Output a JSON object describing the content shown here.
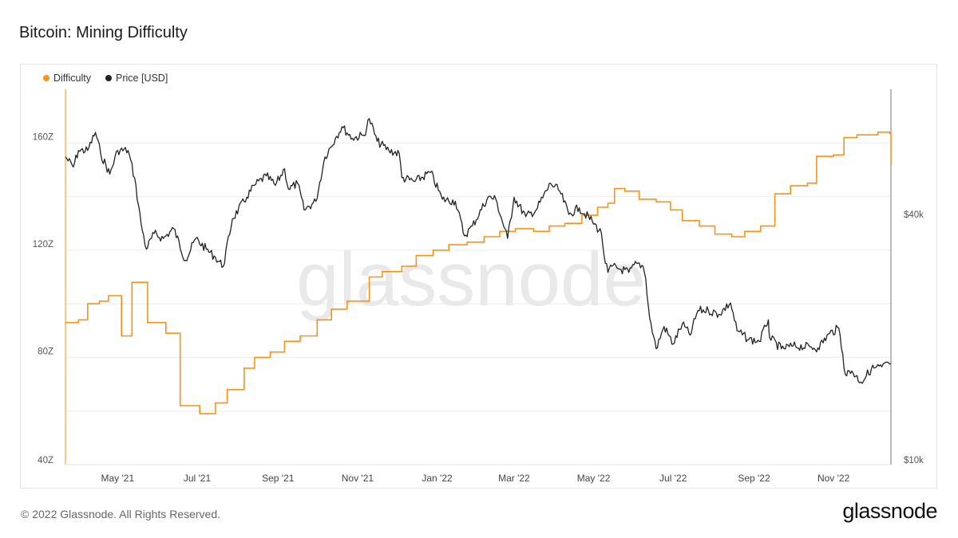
{
  "title": "Bitcoin: Mining Difficulty",
  "footer": {
    "copyright": "© 2022 Glassnode. All Rights Reserved.",
    "logo": "glassnode"
  },
  "watermark": "glassnode",
  "colors": {
    "difficulty": "#f7931a",
    "price": "#222222",
    "grid": "#ececec"
  },
  "chart_data": {
    "type": "line",
    "title": "Bitcoin: Mining Difficulty",
    "legend_position": "top-left",
    "grid": true,
    "x_range": [
      "2021-03-22",
      "2022-12-15"
    ],
    "x_ticks": [
      {
        "date": "2021-05-01",
        "label": "May '21"
      },
      {
        "date": "2021-07-01",
        "label": "Jul '21"
      },
      {
        "date": "2021-09-01",
        "label": "Sep '21"
      },
      {
        "date": "2021-11-01",
        "label": "Nov '21"
      },
      {
        "date": "2022-01-01",
        "label": "Jan '22"
      },
      {
        "date": "2022-03-01",
        "label": "Mar '22"
      },
      {
        "date": "2022-05-01",
        "label": "May '22"
      },
      {
        "date": "2022-07-01",
        "label": "Jul '22"
      },
      {
        "date": "2022-09-01",
        "label": "Sep '22"
      },
      {
        "date": "2022-11-01",
        "label": "Nov '22"
      }
    ],
    "y_left": {
      "unit": "Z",
      "range": [
        40,
        180
      ],
      "ticks": [
        {
          "value": 40,
          "label": "40Z"
        },
        {
          "value": 80,
          "label": "80Z"
        },
        {
          "value": 120,
          "label": "120Z"
        },
        {
          "value": 160,
          "label": "160Z"
        }
      ]
    },
    "y_right": {
      "scale": "log",
      "range": [
        10000,
        80000
      ],
      "ticks": [
        {
          "value": 10000,
          "label": "$10k"
        },
        {
          "value": 40000,
          "label": "$40k"
        }
      ]
    },
    "series": [
      {
        "name": "Difficulty",
        "axis": "left",
        "style": "step",
        "points": [
          [
            "2021-03-22",
            93.0
          ],
          [
            "2021-04-01",
            94.0
          ],
          [
            "2021-04-08",
            100.0
          ],
          [
            "2021-04-17",
            101.0
          ],
          [
            "2021-04-24",
            103.0
          ],
          [
            "2021-05-04",
            88.0
          ],
          [
            "2021-05-12",
            108.0
          ],
          [
            "2021-05-24",
            93.0
          ],
          [
            "2021-06-07",
            89.0
          ],
          [
            "2021-06-18",
            62.0
          ],
          [
            "2021-07-03",
            59.0
          ],
          [
            "2021-07-15",
            63.0
          ],
          [
            "2021-07-24",
            68.0
          ],
          [
            "2021-08-06",
            76.0
          ],
          [
            "2021-08-14",
            80.0
          ],
          [
            "2021-08-26",
            82.0
          ],
          [
            "2021-09-06",
            86.0
          ],
          [
            "2021-09-18",
            88.0
          ],
          [
            "2021-10-01",
            94.0
          ],
          [
            "2021-10-12",
            98.0
          ],
          [
            "2021-10-24",
            101.0
          ],
          [
            "2021-11-10",
            110.0
          ],
          [
            "2021-11-20",
            112.0
          ],
          [
            "2021-12-05",
            114.0
          ],
          [
            "2021-12-16",
            118.0
          ],
          [
            "2021-12-29",
            120.0
          ],
          [
            "2022-01-10",
            122.0
          ],
          [
            "2022-01-24",
            123.0
          ],
          [
            "2022-02-06",
            125.0
          ],
          [
            "2022-02-18",
            127.0
          ],
          [
            "2022-03-02",
            128.0
          ],
          [
            "2022-03-16",
            127.0
          ],
          [
            "2022-03-28",
            129.0
          ],
          [
            "2022-04-09",
            130.0
          ],
          [
            "2022-04-22",
            133.0
          ],
          [
            "2022-05-04",
            136.0
          ],
          [
            "2022-05-12",
            137.5
          ],
          [
            "2022-05-17",
            143.0
          ],
          [
            "2022-05-25",
            142.0
          ],
          [
            "2022-06-05",
            139.0
          ],
          [
            "2022-06-18",
            138.0
          ],
          [
            "2022-06-29",
            135.0
          ],
          [
            "2022-07-08",
            131.0
          ],
          [
            "2022-07-21",
            129.0
          ],
          [
            "2022-08-02",
            126.0
          ],
          [
            "2022-08-15",
            125.0
          ],
          [
            "2022-08-25",
            127.0
          ],
          [
            "2022-09-06",
            129.0
          ],
          [
            "2022-09-17",
            141.0
          ],
          [
            "2022-09-29",
            144.0
          ],
          [
            "2022-10-12",
            145.0
          ],
          [
            "2022-10-19",
            155.0
          ],
          [
            "2022-11-01",
            155.5
          ],
          [
            "2022-11-09",
            162.0
          ],
          [
            "2022-11-19",
            163.0
          ],
          [
            "2022-12-05",
            164.0
          ],
          [
            "2022-12-14",
            163.5
          ],
          [
            "2022-12-15",
            152.0
          ]
        ]
      },
      {
        "name": "Price [USD]",
        "axis": "right",
        "style": "line",
        "points": [
          [
            "2021-03-22",
            55000
          ],
          [
            "2021-03-28",
            52000
          ],
          [
            "2021-04-01",
            57000
          ],
          [
            "2021-04-08",
            57000
          ],
          [
            "2021-04-14",
            63000
          ],
          [
            "2021-04-18",
            56000
          ],
          [
            "2021-04-25",
            50000
          ],
          [
            "2021-05-01",
            57000
          ],
          [
            "2021-05-09",
            57000
          ],
          [
            "2021-05-14",
            49000
          ],
          [
            "2021-05-19",
            38000
          ],
          [
            "2021-05-23",
            33000
          ],
          [
            "2021-05-29",
            36000
          ],
          [
            "2021-06-05",
            35000
          ],
          [
            "2021-06-13",
            37000
          ],
          [
            "2021-06-22",
            31000
          ],
          [
            "2021-06-30",
            35000
          ],
          [
            "2021-07-08",
            33000
          ],
          [
            "2021-07-15",
            31500
          ],
          [
            "2021-07-21",
            30000
          ],
          [
            "2021-07-28",
            39000
          ],
          [
            "2021-08-08",
            44000
          ],
          [
            "2021-08-14",
            47000
          ],
          [
            "2021-08-23",
            49500
          ],
          [
            "2021-08-30",
            47000
          ],
          [
            "2021-09-06",
            51500
          ],
          [
            "2021-09-09",
            46000
          ],
          [
            "2021-09-16",
            47500
          ],
          [
            "2021-09-21",
            41000
          ],
          [
            "2021-09-30",
            43000
          ],
          [
            "2021-10-07",
            55000
          ],
          [
            "2021-10-15",
            61000
          ],
          [
            "2021-10-20",
            65000
          ],
          [
            "2021-10-28",
            61000
          ],
          [
            "2021-11-06",
            62000
          ],
          [
            "2021-11-10",
            68000
          ],
          [
            "2021-11-16",
            60000
          ],
          [
            "2021-11-25",
            57000
          ],
          [
            "2021-12-03",
            56000
          ],
          [
            "2021-12-05",
            49000
          ],
          [
            "2021-12-15",
            48000
          ],
          [
            "2021-12-27",
            50500
          ],
          [
            "2022-01-05",
            43500
          ],
          [
            "2022-01-15",
            43000
          ],
          [
            "2022-01-22",
            35500
          ],
          [
            "2022-01-28",
            37500
          ],
          [
            "2022-02-09",
            44000
          ],
          [
            "2022-02-15",
            43500
          ],
          [
            "2022-02-24",
            35000
          ],
          [
            "2022-03-01",
            44000
          ],
          [
            "2022-03-10",
            39500
          ],
          [
            "2022-03-18",
            41000
          ],
          [
            "2022-03-29",
            47500
          ],
          [
            "2022-04-05",
            45500
          ],
          [
            "2022-04-12",
            40000
          ],
          [
            "2022-04-20",
            41500
          ],
          [
            "2022-04-30",
            38500
          ],
          [
            "2022-05-07",
            36000
          ],
          [
            "2022-05-10",
            30500
          ],
          [
            "2022-05-12",
            29000
          ],
          [
            "2022-05-15",
            30000
          ],
          [
            "2022-05-22",
            29500
          ],
          [
            "2022-05-28",
            29000
          ],
          [
            "2022-06-03",
            30500
          ],
          [
            "2022-06-08",
            30000
          ],
          [
            "2022-06-10",
            28000
          ],
          [
            "2022-06-13",
            22500
          ],
          [
            "2022-06-18",
            19000
          ],
          [
            "2022-06-24",
            21500
          ],
          [
            "2022-07-01",
            19500
          ],
          [
            "2022-07-08",
            21800
          ],
          [
            "2022-07-14",
            20500
          ],
          [
            "2022-07-20",
            23500
          ],
          [
            "2022-07-28",
            23500
          ],
          [
            "2022-08-05",
            23000
          ],
          [
            "2022-08-14",
            24500
          ],
          [
            "2022-08-19",
            21000
          ],
          [
            "2022-08-28",
            20000
          ],
          [
            "2022-09-05",
            19800
          ],
          [
            "2022-09-10",
            21500
          ],
          [
            "2022-09-12",
            22300
          ],
          [
            "2022-09-13",
            20200
          ],
          [
            "2022-09-22",
            19000
          ],
          [
            "2022-10-01",
            19300
          ],
          [
            "2022-10-14",
            19200
          ],
          [
            "2022-10-20",
            19100
          ],
          [
            "2022-10-29",
            20700
          ],
          [
            "2022-11-05",
            21300
          ],
          [
            "2022-11-08",
            18500
          ],
          [
            "2022-11-10",
            16500
          ],
          [
            "2022-11-15",
            16800
          ],
          [
            "2022-11-22",
            15800
          ],
          [
            "2022-11-30",
            17000
          ],
          [
            "2022-12-08",
            17200
          ],
          [
            "2022-12-15",
            17500
          ]
        ]
      }
    ]
  }
}
